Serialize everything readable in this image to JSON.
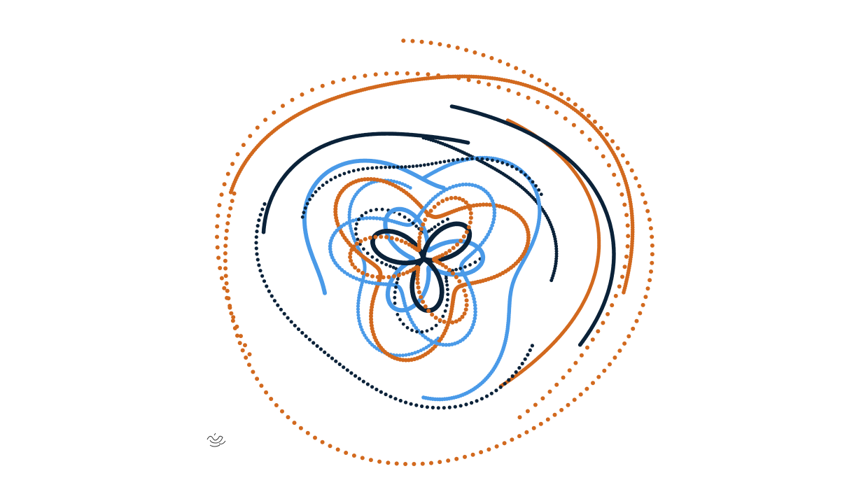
{
  "artwork": {
    "palette": [
      "#d2691e",
      "#0b2239",
      "#4a9ae8"
    ]
  }
}
